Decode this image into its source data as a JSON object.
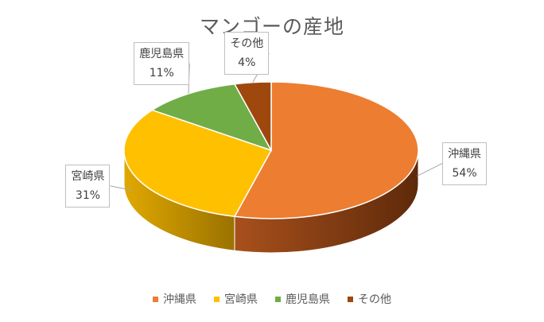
{
  "chart_data": {
    "type": "pie",
    "title": "マンゴーの産地",
    "categories": [
      "沖縄県",
      "宮崎県",
      "鹿児島県",
      "その他"
    ],
    "values": [
      54,
      31,
      11,
      4
    ],
    "value_labels": [
      "54%",
      "31%",
      "11%",
      "4%"
    ],
    "colors": [
      "#ED7D31",
      "#FFC000",
      "#70AD47",
      "#9E480E"
    ],
    "legend_position": "bottom",
    "style": "3d"
  }
}
